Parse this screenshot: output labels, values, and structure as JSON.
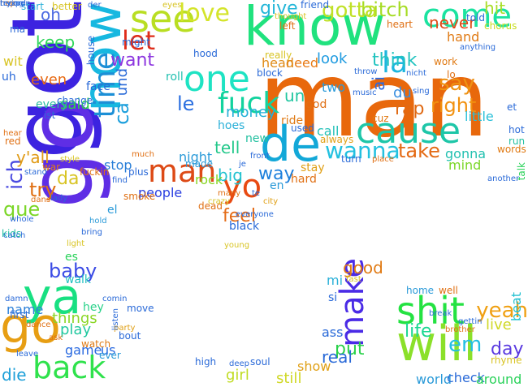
{
  "words": [
    {
      "text": "man",
      "color": "#e8680c"
    },
    {
      "text": "know",
      "color": "#20e27e"
    },
    {
      "text": "got",
      "color": "#3c23e0"
    },
    {
      "text": "go",
      "color": "#5f2ee5"
    },
    {
      "text": "now",
      "color": "#17b8e0"
    },
    {
      "text": "see",
      "color": "#b9de22"
    },
    {
      "text": "come",
      "color": "#1be3a0"
    },
    {
      "text": "one",
      "color": "#1ee3c3"
    },
    {
      "text": "de",
      "color": "#13a8d8"
    },
    {
      "text": "cause",
      "color": "#1ec6a8"
    },
    {
      "text": "fuck",
      "color": "#12d39e"
    },
    {
      "text": "yo",
      "color": "#e84a12"
    },
    {
      "text": "time",
      "color": "#1c8fd6"
    },
    {
      "text": "let",
      "color": "#df2c1a"
    },
    {
      "text": "man",
      "color": "#dd4a16"
    },
    {
      "text": "love",
      "color": "#d4e42a"
    },
    {
      "text": "bitch",
      "color": "#a6dc24"
    },
    {
      "text": "say",
      "color": "#ee9213"
    },
    {
      "text": "right",
      "color": "#f2910f"
    },
    {
      "text": "never",
      "color": "#df4a16"
    },
    {
      "text": "take",
      "color": "#e46a14"
    },
    {
      "text": "wanna",
      "color": "#23c1e0"
    },
    {
      "text": "want",
      "color": "#8d37df"
    },
    {
      "text": "la",
      "color": "#1db6de"
    },
    {
      "text": "ya",
      "color": "#18e082"
    },
    {
      "text": "go",
      "color": "#e79e13"
    },
    {
      "text": "back",
      "color": "#2fe24c"
    },
    {
      "text": "shit",
      "color": "#24e242"
    },
    {
      "text": "will",
      "color": "#8be02a"
    },
    {
      "text": "make",
      "color": "#4a2be6"
    },
    {
      "text": "yeah",
      "color": "#f0a012"
    },
    {
      "text": "em",
      "color": "#23bfe2"
    },
    {
      "text": "baby",
      "color": "#3b4be5"
    },
    {
      "text": "life",
      "color": "#1ad890"
    },
    {
      "text": "gotta",
      "color": "#c0e127"
    },
    {
      "text": "give",
      "color": "#23b6d8"
    },
    {
      "text": "keep",
      "color": "#2fd65a"
    },
    {
      "text": "oh",
      "color": "#4c6ae2"
    },
    {
      "text": "hit",
      "color": "#a8de26"
    },
    {
      "text": "le",
      "color": "#2b6fe0"
    },
    {
      "text": "way",
      "color": "#1c7fdc"
    },
    {
      "text": "feel",
      "color": "#e46a14"
    },
    {
      "text": "good",
      "color": "#e07a14"
    },
    {
      "text": "put",
      "color": "#2ad24a"
    },
    {
      "text": "day",
      "color": "#5a3ae0"
    },
    {
      "text": "live",
      "color": "#d0d826"
    },
    {
      "text": "think",
      "color": "#24c4c0"
    },
    {
      "text": "look",
      "color": "#1f9be0"
    },
    {
      "text": "money",
      "color": "#23b0d8"
    },
    {
      "text": "tell",
      "color": "#22c88a"
    },
    {
      "text": "need",
      "color": "#e87a14"
    },
    {
      "text": "head",
      "color": "#df8a16"
    },
    {
      "text": "rap",
      "color": "#e06a14"
    },
    {
      "text": "du",
      "color": "#3a8fe0"
    },
    {
      "text": "un",
      "color": "#20c6a0"
    },
    {
      "text": "ai",
      "color": "#2a6ae2"
    },
    {
      "text": "ich",
      "color": "#4a4ae0"
    },
    {
      "text": "que",
      "color": "#7ad626"
    },
    {
      "text": "ca",
      "color": "#1c9fdc"
    },
    {
      "text": "und",
      "color": "#2a6ad8"
    },
    {
      "text": "try",
      "color": "#e07014"
    },
    {
      "text": "da",
      "color": "#d8c424"
    },
    {
      "text": "y'all",
      "color": "#e09a14"
    },
    {
      "text": "even",
      "color": "#e86a14"
    },
    {
      "text": "said",
      "color": "#2ad24a"
    },
    {
      "text": "every",
      "color": "#2abca0"
    },
    {
      "text": "big",
      "color": "#22c2d0"
    },
    {
      "text": "people",
      "color": "#2a3fe0"
    },
    {
      "text": "night",
      "color": "#2a9ad8"
    },
    {
      "text": "stop",
      "color": "#2a7fd8"
    },
    {
      "text": "rock",
      "color": "#86d622"
    },
    {
      "text": "mind",
      "color": "#7ad626"
    },
    {
      "text": "gonna",
      "color": "#22c0b0"
    },
    {
      "text": "little",
      "color": "#2ac0d8"
    },
    {
      "text": "things",
      "color": "#8ad626"
    },
    {
      "text": "play",
      "color": "#22c8a0"
    },
    {
      "text": "game",
      "color": "#2a6ae0"
    },
    {
      "text": "us",
      "color": "#2a6ae0"
    },
    {
      "text": "die",
      "color": "#1c9fd8"
    },
    {
      "text": "real",
      "color": "#2a6ad8"
    },
    {
      "text": "show",
      "color": "#e0a016"
    },
    {
      "text": "still",
      "color": "#d0d826"
    },
    {
      "text": "girl",
      "color": "#c0dc22"
    },
    {
      "text": "world",
      "color": "#2a9ad8"
    },
    {
      "text": "check",
      "color": "#2a6ad8"
    },
    {
      "text": "around",
      "color": "#2ad25a"
    },
    {
      "text": "name",
      "color": "#2a7fd8"
    },
    {
      "text": "hey",
      "color": "#2ad28a"
    },
    {
      "text": "es",
      "color": "#2ad25a"
    },
    {
      "text": "walk",
      "color": "#22c0c0"
    },
    {
      "text": "ass",
      "color": "#2a6ad8"
    },
    {
      "text": "mi",
      "color": "#2ab0d8"
    },
    {
      "text": "si",
      "color": "#2a6ad8"
    },
    {
      "text": "beat",
      "color": "#22c0d0"
    },
    {
      "text": "hand",
      "color": "#e07a14"
    },
    {
      "text": "chorus",
      "color": "#c8dc22"
    },
    {
      "text": "two",
      "color": "#2a9ad8"
    },
    {
      "text": "call",
      "color": "#22c0b8"
    },
    {
      "text": "god",
      "color": "#e07014"
    },
    {
      "text": "used",
      "color": "#2a6ad8"
    },
    {
      "text": "ride",
      "color": "#e07a14"
    },
    {
      "text": "hoes",
      "color": "#2ab0d8"
    },
    {
      "text": "new",
      "color": "#22c0a0"
    },
    {
      "text": "en",
      "color": "#2a9ad8"
    },
    {
      "text": "hard",
      "color": "#e07014"
    },
    {
      "text": "stay",
      "color": "#e0a016"
    },
    {
      "text": "face",
      "color": "#2a6ad8"
    },
    {
      "text": "roll",
      "color": "#22c0b0"
    },
    {
      "text": "start",
      "color": "#2ab0d8"
    },
    {
      "text": "wit",
      "color": "#d8c424"
    },
    {
      "text": "uh",
      "color": "#2a6ad8"
    },
    {
      "text": "kids",
      "color": "#22c0a0"
    },
    {
      "text": "whole",
      "color": "#2a6ad8"
    },
    {
      "text": "hold",
      "color": "#2a9ad8"
    },
    {
      "text": "bring",
      "color": "#2a6ad8"
    },
    {
      "text": "el",
      "color": "#2a9ad8"
    },
    {
      "text": "move",
      "color": "#2a6ad8"
    },
    {
      "text": "made",
      "color": "#2a9ad8"
    },
    {
      "text": "fuckin",
      "color": "#e07014"
    },
    {
      "text": "much",
      "color": "#e07014"
    },
    {
      "text": "work",
      "color": "#e07a14"
    },
    {
      "text": "black",
      "color": "#2a6ad8"
    },
    {
      "text": "high",
      "color": "#2a6ad8"
    },
    {
      "text": "party",
      "color": "#e0a016"
    },
    {
      "text": "watch",
      "color": "#e07a14"
    },
    {
      "text": "bout",
      "color": "#2a6ad8"
    },
    {
      "text": "first",
      "color": "#2a6ad8"
    },
    {
      "text": "light",
      "color": "#d8c424"
    },
    {
      "text": "words",
      "color": "#e07a14"
    },
    {
      "text": "hot",
      "color": "#2a6ad8"
    },
    {
      "text": "run",
      "color": "#22c0a0"
    },
    {
      "text": "et",
      "color": "#2a6ad8"
    },
    {
      "text": "talk",
      "color": "#2ad25a"
    },
    {
      "text": "ist",
      "color": "#2a6ad8"
    },
    {
      "text": "always",
      "color": "#e0a016"
    },
    {
      "text": "turn",
      "color": "#2a6ad8"
    },
    {
      "text": "cuz",
      "color": "#e07a14"
    },
    {
      "text": "brother",
      "color": "#e07014"
    },
    {
      "text": "rhyme",
      "color": "#d8c424"
    },
    {
      "text": "home",
      "color": "#2a9ad8"
    },
    {
      "text": "well",
      "color": "#e07014"
    },
    {
      "text": "leave",
      "color": "#2a6ad8"
    },
    {
      "text": "ever",
      "color": "#2a9ad8"
    },
    {
      "text": "war",
      "color": "#e07a14"
    },
    {
      "text": "dead",
      "color": "#e07014"
    },
    {
      "text": "lo",
      "color": "#e07014"
    },
    {
      "text": "ma",
      "color": "#2a6ad8"
    },
    {
      "text": "house",
      "color": "#2a6ad8"
    },
    {
      "text": "better",
      "color": "#d8c424"
    },
    {
      "text": "might",
      "color": "#2a6ad8"
    },
    {
      "text": "hood",
      "color": "#2a6ad8"
    },
    {
      "text": "change",
      "color": "#2a6ad8"
    },
    {
      "text": "red",
      "color": "#e07014"
    },
    {
      "text": "style",
      "color": "#d8c424"
    },
    {
      "text": "find",
      "color": "#2a6ad8"
    },
    {
      "text": "plus",
      "color": "#2a6ad8"
    },
    {
      "text": "smoke",
      "color": "#e07014"
    },
    {
      "text": "dans",
      "color": "#e07014"
    },
    {
      "text": "stand",
      "color": "#2a6ad8"
    },
    {
      "text": "der",
      "color": "#2a6ad8"
    },
    {
      "text": "thought",
      "color": "#d8c424"
    },
    {
      "text": "left",
      "color": "#e07014"
    },
    {
      "text": "friend",
      "color": "#2a6ad8"
    },
    {
      "text": "heart",
      "color": "#e07014"
    },
    {
      "text": "told",
      "color": "#2a6ad8"
    },
    {
      "text": "eyes",
      "color": "#d8c424"
    },
    {
      "text": "really",
      "color": "#d8c424"
    },
    {
      "text": "block",
      "color": "#2a6ad8"
    },
    {
      "text": "city",
      "color": "#e0a016"
    },
    {
      "text": "front",
      "color": "#2a6ad8"
    },
    {
      "text": "je",
      "color": "#2a6ad8"
    },
    {
      "text": "many",
      "color": "#e07014"
    },
    {
      "text": "crazy",
      "color": "#d8c424"
    },
    {
      "text": "deep",
      "color": "#2a6ad8"
    },
    {
      "text": "gettin",
      "color": "#2a6ad8"
    },
    {
      "text": "soul",
      "color": "#2a6ad8"
    },
    {
      "text": "another",
      "color": "#2a6ad8"
    },
    {
      "text": "everyone",
      "color": "#2a6ad8"
    },
    {
      "text": "te",
      "color": "#2a6ad8"
    },
    {
      "text": "place",
      "color": "#e07014"
    },
    {
      "text": "fast",
      "color": "#d8c424"
    },
    {
      "text": "sing",
      "color": "#2a6ad8"
    },
    {
      "text": "nicht",
      "color": "#2a6ad8"
    },
    {
      "text": "break",
      "color": "#2a6ad8"
    },
    {
      "text": "listen",
      "color": "#2a6ad8"
    },
    {
      "text": "music",
      "color": "#2a6ad8"
    },
    {
      "text": "throw",
      "color": "#2a6ad8"
    },
    {
      "text": "lady",
      "color": "#2a6ad8"
    },
    {
      "text": "dance",
      "color": "#e07014"
    },
    {
      "text": "catch",
      "color": "#2a6ad8"
    },
    {
      "text": "damn",
      "color": "#2a6ad8"
    },
    {
      "text": "comin",
      "color": "#2a6ad8"
    },
    {
      "text": "hear",
      "color": "#e07014"
    },
    {
      "text": "young",
      "color": "#d8c424"
    },
    {
      "text": "ask",
      "color": "#e07014"
    },
    {
      "text": "anything",
      "color": "#2a6ad8"
    },
    {
      "text": "happen",
      "color": "#2a6ad8"
    },
    {
      "text": "hop",
      "color": "#e07014"
    },
    {
      "text": "trying",
      "color": "#2a6ad8"
    },
    {
      "text": "record",
      "color": "#2a6ad8"
    }
  ]
}
